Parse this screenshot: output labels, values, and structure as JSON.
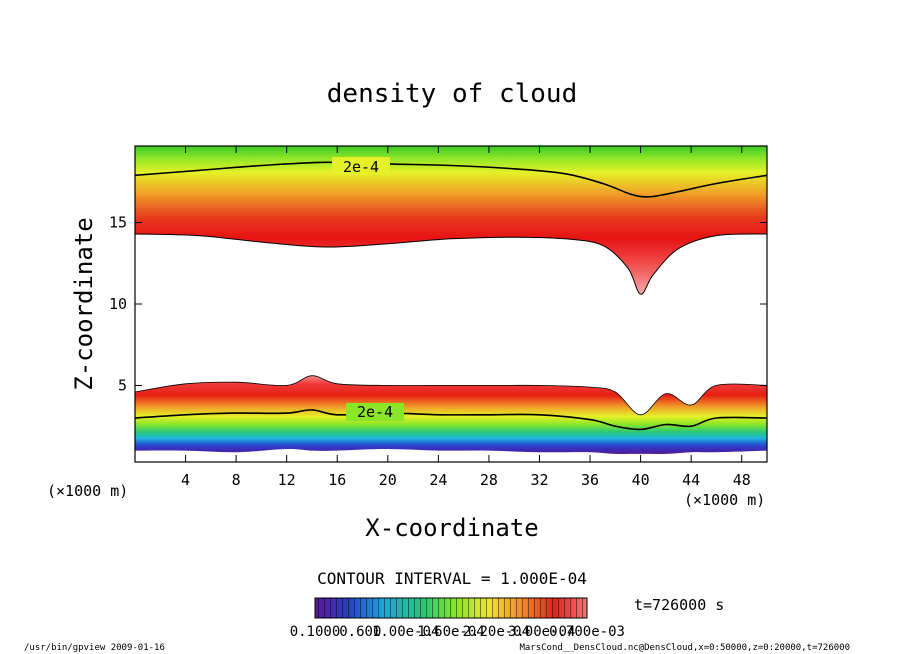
{
  "chart_data": {
    "type": "heatmap",
    "title": "density of cloud",
    "xlabel": "X-coordinate",
    "ylabel": "Z-coordinate",
    "x_unit_label": "(×1000 m)",
    "y_unit_label": "(×1000 m)",
    "xlim": [
      0,
      50
    ],
    "ylim": [
      0.3,
      19.7
    ],
    "x_ticks": [
      4,
      8,
      12,
      16,
      20,
      24,
      28,
      32,
      36,
      40,
      44,
      48
    ],
    "y_ticks": [
      5,
      10,
      15
    ],
    "contour_interval_text": "CONTOUR INTERVAL = 1.000E-04",
    "time_text": "t=726000 s",
    "contour_labels": [
      "2e-4",
      "2e-4"
    ],
    "colorbar_labels": [
      "0.1000",
      "0.600",
      "1.00e-04",
      "1.60e-04",
      "2.20e-04",
      "3.00e-04",
      "0.700e-03"
    ],
    "color_scale": [
      "#5a1a8a",
      "#2a3cc8",
      "#1ea4d8",
      "#28c878",
      "#8ce628",
      "#f0e628",
      "#f08c28",
      "#e61e1e",
      "#f07878"
    ],
    "upper_layer": {
      "x": [
        0,
        5,
        10,
        15,
        20,
        25,
        30,
        34,
        37,
        39,
        40,
        41,
        43,
        46,
        50
      ],
      "base": [
        14.3,
        14.2,
        13.8,
        13.5,
        13.7,
        14.0,
        14.1,
        14.0,
        13.6,
        12.2,
        10.6,
        11.8,
        13.4,
        14.2,
        14.3
      ],
      "contour_2e4": [
        17.9,
        18.2,
        18.5,
        18.7,
        18.6,
        18.5,
        18.3,
        18.0,
        17.4,
        16.8,
        16.6,
        16.6,
        16.9,
        17.4,
        17.9
      ]
    },
    "lower_layer": {
      "x": [
        0,
        4,
        8,
        12,
        14,
        16,
        20,
        24,
        28,
        32,
        36,
        38,
        40,
        42,
        44,
        46,
        50
      ],
      "top": [
        4.6,
        5.1,
        5.2,
        5.0,
        5.6,
        5.1,
        5.0,
        5.0,
        5.0,
        5.0,
        4.9,
        4.6,
        3.2,
        4.5,
        3.8,
        5.0,
        5.0
      ],
      "contour_2e4": [
        3.0,
        3.2,
        3.3,
        3.3,
        3.5,
        3.2,
        3.3,
        3.2,
        3.2,
        3.2,
        2.9,
        2.5,
        2.3,
        2.6,
        2.5,
        3.0,
        3.0
      ],
      "bottom": [
        1.0,
        1.0,
        0.9,
        1.1,
        1.0,
        1.0,
        1.1,
        1.0,
        1.0,
        0.9,
        0.9,
        0.8,
        0.8,
        0.8,
        0.9,
        0.9,
        1.0
      ]
    }
  },
  "footer": {
    "left": "/usr/bin/gpview  2009-01-16",
    "right": "MarsCond__DensCloud.nc@DensCloud,x=0:50000,z=0:20000,t=726000"
  }
}
